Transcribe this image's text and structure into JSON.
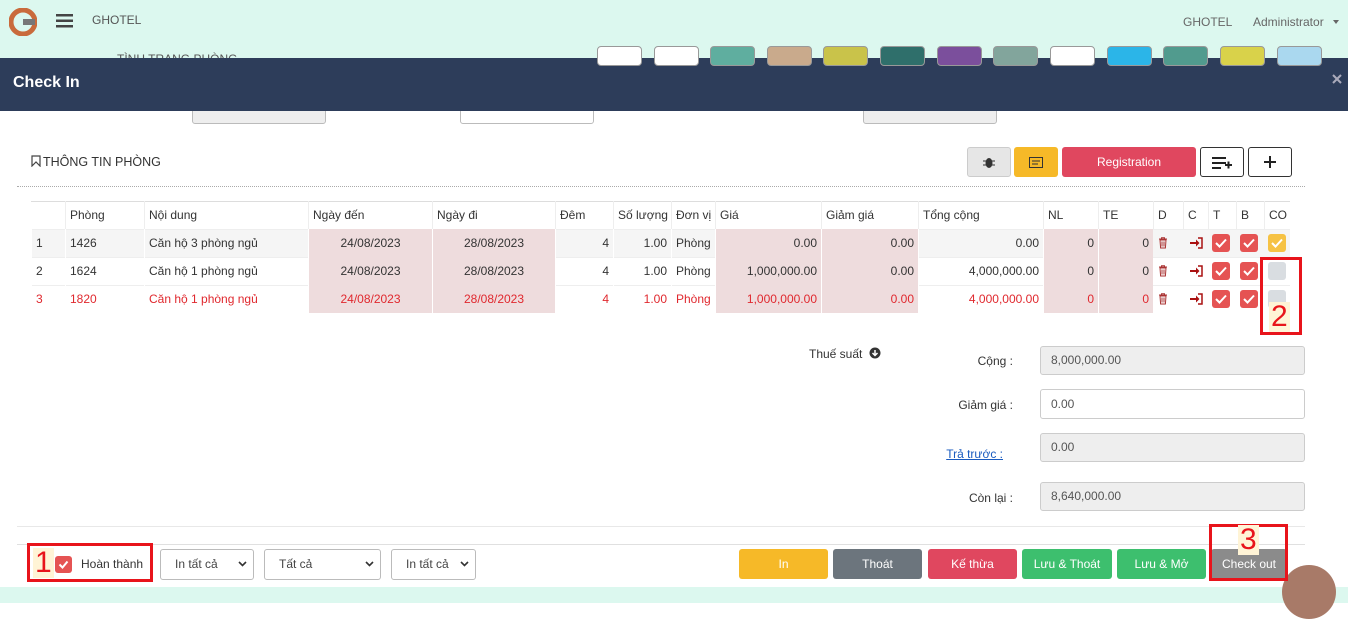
{
  "navbar": {
    "brand": "GHOTEL",
    "site": "GHOTEL",
    "user": "Administrator",
    "behind_tab": "TÌNH TRẠNG PHÒNG"
  },
  "modal": {
    "title": "Check In"
  },
  "section_title": "THÔNG TIN PHÒNG",
  "registration_button": "Registration",
  "table": {
    "headers": [
      "Phòng",
      "Nội dung",
      "Ngày đến",
      "Ngày đi",
      "Đêm",
      "Số lượng",
      "Đơn vị",
      "Giá",
      "Giảm giá",
      "Tổng cộng",
      "NL",
      "TE",
      "D",
      "C",
      "T",
      "B",
      "CO"
    ],
    "rows": [
      [
        "1",
        "1426",
        "Căn hộ 3 phòng ngủ",
        "24/08/2023",
        "28/08/2023",
        "4",
        "1.00",
        "Phòng",
        "0.00",
        "0.00",
        "0.00",
        "0",
        "0"
      ],
      [
        "2",
        "1624",
        "Căn hộ 1 phòng ngủ",
        "24/08/2023",
        "28/08/2023",
        "4",
        "1.00",
        "Phòng",
        "1,000,000.00",
        "0.00",
        "4,000,000.00",
        "0",
        "0"
      ],
      [
        "3",
        "1820",
        "Căn hộ 1 phòng ngủ",
        "24/08/2023",
        "28/08/2023",
        "4",
        "1.00",
        "Phòng",
        "1,000,000.00",
        "0.00",
        "4,000,000.00",
        "0",
        "0"
      ]
    ]
  },
  "summary": {
    "tax_label": "Thuế suất",
    "items": [
      {
        "label": "Cộng :",
        "value": "8,000,000.00"
      },
      {
        "label": "Giảm giá :",
        "value": "0.00"
      },
      {
        "label": "Trả trước :",
        "value": "0.00"
      },
      {
        "label": "Còn lại :",
        "value": "8,640,000.00"
      }
    ]
  },
  "footer": {
    "complete_label": "Hoàn thành",
    "selects": [
      "In tất cả",
      "Tất cả",
      "In tất cả"
    ],
    "buttons": [
      "In",
      "Thoát",
      "Kế thừa",
      "Lưu & Thoát",
      "Lưu & Mở",
      "Check out"
    ]
  },
  "annotations": [
    "1",
    "2",
    "3"
  ]
}
